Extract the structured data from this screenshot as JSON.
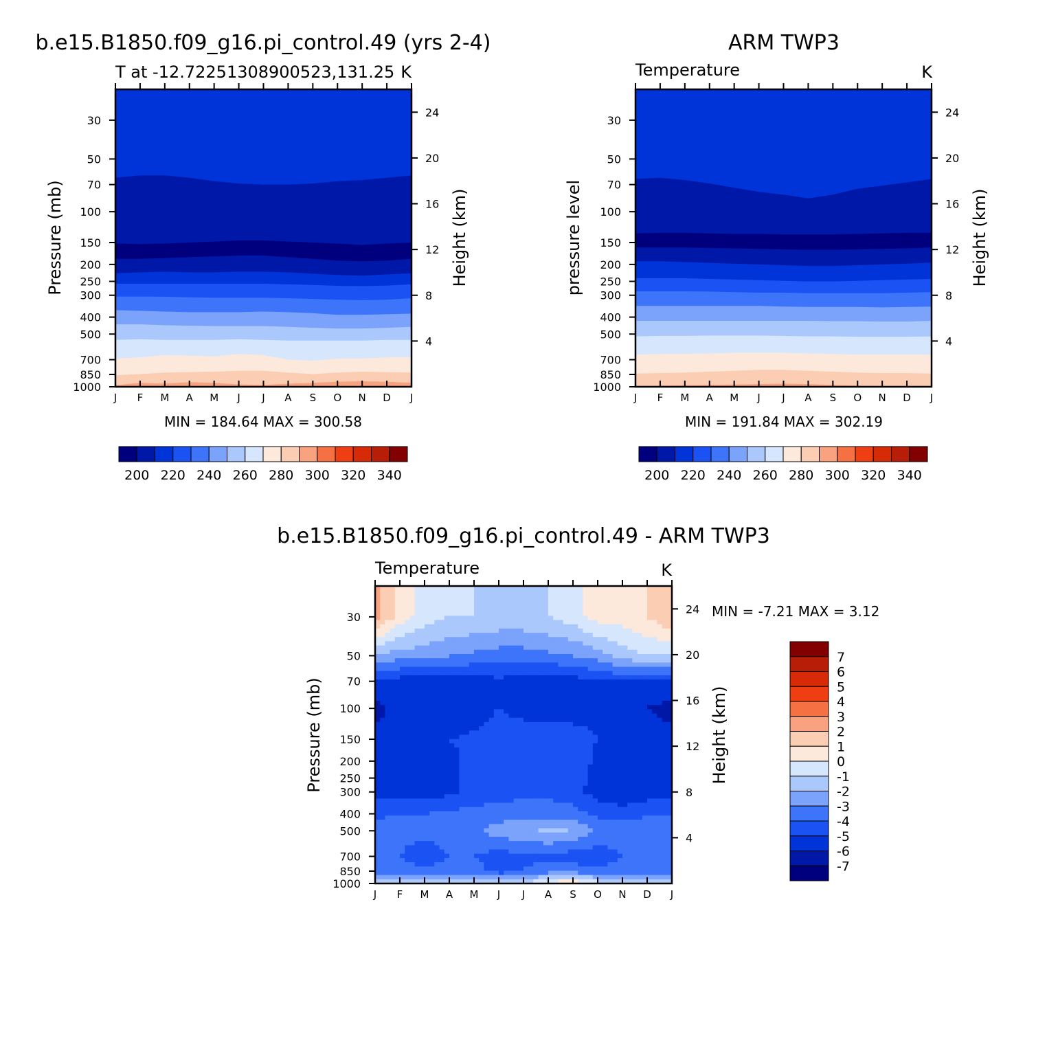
{
  "palette": [
    "#00007f",
    "#0018a8",
    "#0033d8",
    "#1a52f3",
    "#3d74fa",
    "#7ba3fb",
    "#abc8fd",
    "#d6e7fd",
    "#fde9dc",
    "#fbcdb3",
    "#f8a27f",
    "#f57043",
    "#f03e13",
    "#d72b08",
    "#b71d07",
    "#830000"
  ],
  "months": [
    "J",
    "F",
    "M",
    "A",
    "M",
    "J",
    "J",
    "A",
    "S",
    "O",
    "N",
    "D",
    "J"
  ],
  "pressure_ticks": [
    "30",
    "50",
    "70",
    "100",
    "150",
    "200",
    "250",
    "300",
    "400",
    "500",
    "700",
    "850",
    "1000"
  ],
  "height_ticks": [
    "24",
    "20",
    "16",
    "12",
    "8",
    "4"
  ],
  "panels": {
    "model": {
      "title": "b.e15.B1850.f09_g16.pi_control.49 (yrs 2-4)",
      "subtitle_left": "T at -12.72251308900523,131.25",
      "subtitle_right": "K",
      "ylabel": "Pressure (mb)",
      "ylabel_right": "Height (km)",
      "min_label": "MIN = 184.64 MAX = 300.58"
    },
    "obs": {
      "title": "ARM TWP3",
      "subtitle_left": "Temperature",
      "subtitle_right": "K",
      "ylabel": "pressure level",
      "ylabel_right": "Height (km)",
      "min_label": "MIN = 191.84 MAX = 302.19"
    },
    "diff": {
      "title": "b.e15.B1850.f09_g16.pi_control.49 - ARM TWP3",
      "subtitle_left": "Temperature",
      "subtitle_right": "K",
      "ylabel": "Pressure (mb)",
      "ylabel_right": "Height (km)",
      "min_label": "MIN = -7.21 MAX = 3.12"
    }
  },
  "chart_data": [
    {
      "type": "heatmap",
      "title": "b.e15.B1850.f09_g16.pi_control.49 (yrs 2-4)",
      "subtitle": "T at -12.72251308900523,131.25",
      "units": "K",
      "xlabel": "",
      "ylabel": "Pressure (mb)",
      "ylabel_right": "Height (km)",
      "x": [
        "J",
        "F",
        "M",
        "A",
        "M",
        "J",
        "J",
        "A",
        "S",
        "O",
        "N",
        "D",
        "J"
      ],
      "y_pressure": [
        1000,
        850,
        700,
        500,
        400,
        300,
        250,
        200,
        150,
        100,
        70,
        50,
        30
      ],
      "ylim_pressure": [
        1000,
        20
      ],
      "ylim_height": [
        0,
        26
      ],
      "contour_levels": [
        200,
        210,
        220,
        230,
        240,
        250,
        260,
        270,
        280,
        290,
        300,
        310,
        320,
        330,
        340
      ],
      "colorbar_labels": [
        "200",
        "220",
        "240",
        "260",
        "280",
        "300",
        "320",
        "340"
      ],
      "min": 184.64,
      "max": 300.58,
      "band_boundaries_mb": {
        "x": [
          "J",
          "F",
          "M",
          "A",
          "M",
          "J",
          "J",
          "A",
          "S",
          "O",
          "N",
          "D",
          "J"
        ],
        "b_300": [
          980,
          950,
          960,
          940,
          950,
          970,
          975,
          960,
          950,
          935,
          930,
          935,
          950
        ],
        "b_290": [
          860,
          845,
          830,
          825,
          820,
          810,
          810,
          830,
          845,
          830,
          820,
          825,
          830
        ],
        "b_280": [
          690,
          680,
          660,
          665,
          670,
          650,
          660,
          700,
          710,
          690,
          690,
          680,
          680
        ],
        "b_270": [
          540,
          535,
          540,
          540,
          540,
          535,
          540,
          545,
          545,
          545,
          545,
          540,
          540
        ],
        "b_260": [
          440,
          440,
          445,
          448,
          450,
          450,
          450,
          455,
          460,
          465,
          465,
          460,
          455
        ],
        "b_250": [
          365,
          368,
          372,
          375,
          375,
          375,
          372,
          375,
          380,
          388,
          388,
          385,
          382
        ],
        "b_240": [
          305,
          305,
          306,
          308,
          310,
          310,
          310,
          312,
          315,
          318,
          320,
          318,
          312
        ],
        "b_230": [
          258,
          258,
          258,
          258,
          258,
          258,
          258,
          260,
          262,
          265,
          266,
          264,
          260
        ],
        "b_220": [
          225,
          222,
          220,
          222,
          222,
          220,
          220,
          222,
          226,
          230,
          232,
          228,
          225
        ],
        "b_210": [
          186,
          186,
          184,
          182,
          180,
          178,
          178,
          182,
          186,
          190,
          192,
          190,
          186
        ],
        "b_200": [
          152,
          153,
          152,
          150,
          148,
          146,
          146,
          148,
          150,
          152,
          155,
          152,
          150
        ],
        "b_190": [
          64,
          62,
          62,
          64,
          67,
          69,
          70,
          70,
          69,
          67,
          66,
          64,
          62
        ],
        "b_180": [
          40,
          37,
          38,
          40,
          42,
          44,
          45,
          45,
          44,
          42,
          41,
          40,
          40
        ]
      }
    },
    {
      "type": "heatmap",
      "title": "ARM TWP3",
      "subtitle": "Temperature",
      "units": "K",
      "xlabel": "",
      "ylabel": "pressure level",
      "ylabel_right": "Height (km)",
      "x": [
        "J",
        "F",
        "M",
        "A",
        "M",
        "J",
        "J",
        "A",
        "S",
        "O",
        "N",
        "D",
        "J"
      ],
      "y_pressure": [
        1000,
        850,
        700,
        500,
        400,
        300,
        250,
        200,
        150,
        100,
        70,
        50,
        30
      ],
      "ylim_pressure": [
        1000,
        20
      ],
      "ylim_height": [
        0,
        26
      ],
      "contour_levels": [
        200,
        210,
        220,
        230,
        240,
        250,
        260,
        270,
        280,
        290,
        300,
        310,
        320,
        330,
        340
      ],
      "colorbar_labels": [
        "200",
        "220",
        "240",
        "260",
        "280",
        "300",
        "320",
        "340"
      ],
      "min": 191.84,
      "max": 302.19,
      "band_boundaries_mb": {
        "x": [
          "J",
          "F",
          "M",
          "A",
          "M",
          "J",
          "J",
          "A",
          "S",
          "O",
          "N",
          "D",
          "J"
        ],
        "b_300": [
          990,
          985,
          980,
          975,
          970,
          965,
          960,
          965,
          975,
          985,
          990,
          988,
          990
        ],
        "b_290": [
          840,
          835,
          830,
          820,
          810,
          800,
          800,
          810,
          820,
          830,
          835,
          835,
          840
        ],
        "b_280": [
          655,
          650,
          648,
          645,
          640,
          640,
          640,
          645,
          650,
          655,
          655,
          655,
          655
        ],
        "b_270": [
          515,
          512,
          512,
          510,
          510,
          510,
          512,
          515,
          515,
          518,
          518,
          518,
          515
        ],
        "b_260": [
          420,
          420,
          420,
          420,
          420,
          420,
          420,
          420,
          422,
          422,
          424,
          424,
          420
        ],
        "b_250": [
          345,
          345,
          345,
          345,
          345,
          345,
          348,
          350,
          350,
          350,
          352,
          350,
          348
        ],
        "b_240": [
          285,
          285,
          285,
          286,
          288,
          290,
          290,
          292,
          292,
          292,
          292,
          290,
          288
        ],
        "b_230": [
          240,
          240,
          240,
          242,
          244,
          246,
          248,
          250,
          250,
          248,
          246,
          244,
          242
        ],
        "b_220": [
          192,
          192,
          194,
          196,
          198,
          200,
          202,
          204,
          204,
          202,
          200,
          198,
          195
        ],
        "b_210": [
          160,
          160,
          160,
          161,
          162,
          163,
          164,
          165,
          165,
          164,
          163,
          162,
          160
        ],
        "b_200": [
          133,
          132,
          132,
          133,
          134,
          134,
          135,
          135,
          135,
          134,
          133,
          132,
          132
        ],
        "b_190": [
          65,
          64,
          66,
          69,
          73,
          77,
          80,
          84,
          80,
          74,
          71,
          68,
          65
        ],
        "b_180": [
          38,
          38,
          40,
          42,
          44,
          46,
          47,
          47,
          47,
          44,
          43,
          41,
          38
        ]
      }
    },
    {
      "type": "heatmap",
      "title": "b.e15.B1850.f09_g16.pi_control.49 - ARM TWP3",
      "subtitle": "Temperature",
      "units": "K",
      "xlabel": "",
      "ylabel": "Pressure (mb)",
      "ylabel_right": "Height (km)",
      "x": [
        "J",
        "F",
        "M",
        "A",
        "M",
        "J",
        "J",
        "A",
        "S",
        "O",
        "N",
        "D",
        "J"
      ],
      "y_pressure": [
        1000,
        850,
        700,
        500,
        400,
        300,
        250,
        200,
        150,
        100,
        70,
        50,
        30
      ],
      "ylim_pressure": [
        1000,
        20
      ],
      "ylim_height": [
        0,
        26
      ],
      "contour_levels": [
        -7,
        -6,
        -5,
        -4,
        -3,
        -2,
        -1,
        0,
        1,
        2,
        3,
        4,
        5,
        6,
        7
      ],
      "colorbar_labels": [
        "7",
        "6",
        "5",
        "4",
        "3",
        "2",
        "1",
        "0",
        "-1",
        "-2",
        "-3",
        "-4",
        "-5",
        "-6",
        "-7"
      ],
      "min": -7.21,
      "max": 3.12,
      "approx_values_K": {
        "x": [
          "J",
          "F",
          "M",
          "A",
          "M",
          "J",
          "J",
          "A",
          "S",
          "O",
          "N",
          "D",
          "J"
        ],
        "p_mb": [
          1000,
          850,
          700,
          500,
          400,
          300,
          200,
          150,
          100,
          70,
          50,
          30
        ],
        "rows": [
          [
            -1.5,
            -1.2,
            -1.0,
            -1.0,
            -1.2,
            -1.5,
            -1.0,
            0.5,
            1.0,
            -0.5,
            -1.0,
            -1.2,
            -1.5
          ],
          [
            -3.5,
            -3.5,
            -3.8,
            -3.5,
            -3.6,
            -4.5,
            -4.0,
            -3.5,
            -3.5,
            -3.8,
            -3.5,
            -3.5,
            -3.5
          ],
          [
            -4.0,
            -4.0,
            -4.8,
            -4.0,
            -4.0,
            -4.5,
            -4.2,
            -4.2,
            -4.5,
            -4.6,
            -4.0,
            -4.0,
            -3.8
          ],
          [
            -3.5,
            -3.6,
            -3.5,
            -3.5,
            -3.2,
            -2.5,
            -2.2,
            -1.8,
            -2.0,
            -3.2,
            -3.5,
            -3.0,
            -3.0
          ],
          [
            -4.2,
            -4.0,
            -4.0,
            -3.8,
            -3.6,
            -3.5,
            -3.5,
            -3.5,
            -3.6,
            -4.2,
            -4.5,
            -4.2,
            -4.0
          ],
          [
            -5.5,
            -5.5,
            -5.5,
            -5.2,
            -4.8,
            -4.5,
            -4.2,
            -4.2,
            -4.6,
            -5.5,
            -5.8,
            -5.5,
            -5.5
          ],
          [
            -5.5,
            -5.5,
            -5.5,
            -5.2,
            -4.8,
            -4.2,
            -4.0,
            -4.0,
            -4.5,
            -5.2,
            -5.5,
            -5.5,
            -5.5
          ],
          [
            -5.5,
            -5.5,
            -5.2,
            -5.0,
            -4.8,
            -4.5,
            -4.2,
            -4.2,
            -4.5,
            -5.0,
            -5.5,
            -5.5,
            -5.5
          ],
          [
            -6.5,
            -5.5,
            -5.5,
            -6.0,
            -5.5,
            -5.0,
            -5.5,
            -5.5,
            -5.5,
            -5.2,
            -5.5,
            -6.0,
            -6.5
          ],
          [
            -5.0,
            -5.5,
            -5.5,
            -5.8,
            -5.5,
            -5.2,
            -5.5,
            -5.8,
            -5.5,
            -5.0,
            -5.0,
            -5.0,
            -5.0
          ],
          [
            -2.0,
            -2.5,
            -2.5,
            -3.0,
            -3.2,
            -3.5,
            -3.5,
            -3.2,
            -3.0,
            -2.5,
            -1.5,
            -1.0,
            -1.0
          ],
          [
            2.5,
            0.5,
            -0.5,
            -1.0,
            -1.0,
            -1.2,
            -1.2,
            -1.0,
            -0.5,
            0.5,
            0.5,
            1.0,
            2.0
          ]
        ]
      }
    }
  ]
}
